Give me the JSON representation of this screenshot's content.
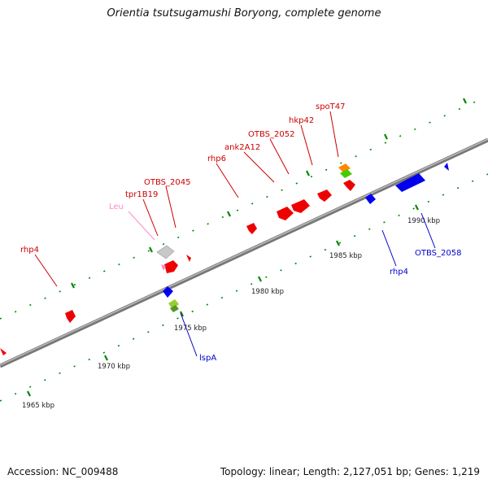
{
  "title": "Orientia tsutsugamushi Boryong, complete genome",
  "footer": {
    "accession": "Accession: NC_009488",
    "topology": "Topology: linear; Length: 2,127,051 bp; Genes: 1,219"
  },
  "colors": {
    "forward_gene": "#ff0000",
    "reverse_gene": "#0000ff",
    "trna_label": "#ff88cc",
    "rrna": "#cccccc",
    "tick": "#008800",
    "axis": "#888888",
    "highlight_orange": "#ff8800",
    "highlight_green": "#44cc00"
  },
  "scale_labels": [
    "1965 kbp",
    "1970 kbp",
    "1975 kbp",
    "1980 kbp",
    "1985 kbp",
    "1990 kbp"
  ],
  "gene_labels_top": [
    {
      "text": "rhp4",
      "color": "#cc0000"
    },
    {
      "text": "Leu",
      "color": "#ff88cc"
    },
    {
      "text": "tpr1B19",
      "color": "#cc0000"
    },
    {
      "text": "OTBS_2045",
      "color": "#cc0000"
    },
    {
      "text": "rhp6",
      "color": "#cc0000"
    },
    {
      "text": "ank2A12",
      "color": "#cc0000"
    },
    {
      "text": "OTBS_2052",
      "color": "#cc0000"
    },
    {
      "text": "hkp42",
      "color": "#cc0000"
    },
    {
      "text": "spoT47",
      "color": "#cc0000"
    }
  ],
  "gene_labels_bottom": [
    {
      "text": "lspA",
      "color": "#0000cc"
    },
    {
      "text": "rhp4",
      "color": "#0000cc"
    },
    {
      "text": "OTBS_2058",
      "color": "#0000cc"
    }
  ]
}
